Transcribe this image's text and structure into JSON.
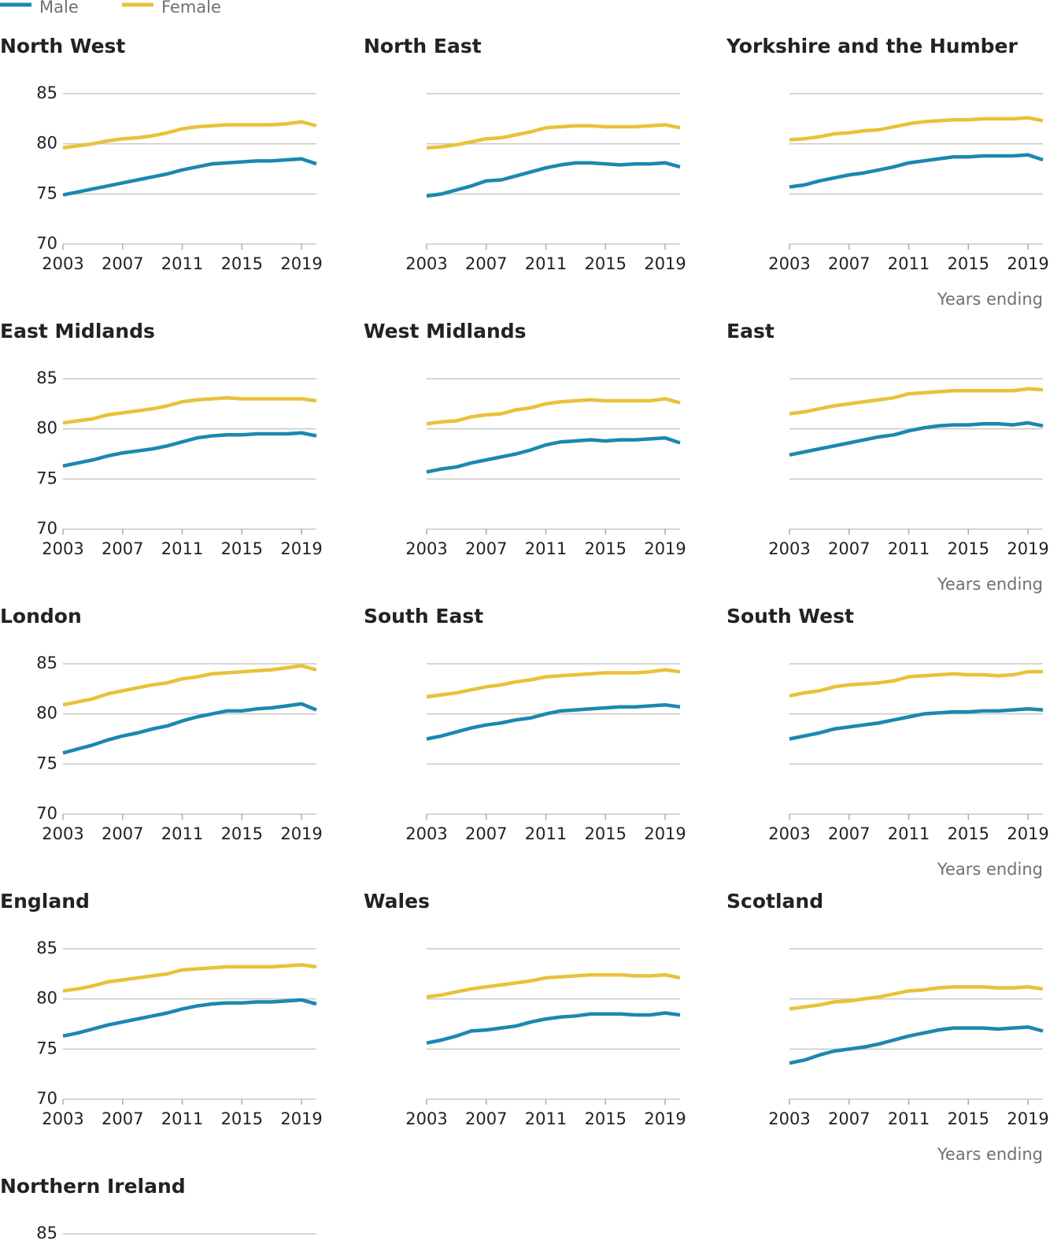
{
  "legend": {
    "items": [
      {
        "name": "Male",
        "color": "#1b88b0"
      },
      {
        "name": "Female",
        "color": "#e8c23a"
      }
    ]
  },
  "chart_data": [
    {
      "type": "line",
      "title": "North West",
      "x": [
        2003,
        2004,
        2005,
        2006,
        2007,
        2008,
        2009,
        2010,
        2011,
        2012,
        2013,
        2014,
        2015,
        2016,
        2017,
        2018,
        2019,
        2020
      ],
      "xlim": [
        2003,
        2020
      ],
      "xticks": [
        2003,
        2007,
        2011,
        2015,
        2019
      ],
      "ylim": [
        70,
        85
      ],
      "yticks": [
        70,
        75,
        80,
        85
      ],
      "show_ytick_labels": true,
      "grid": true,
      "series": [
        {
          "color": "#1b88b0",
          "values": [
            74.9,
            75.2,
            75.5,
            75.8,
            76.1,
            76.4,
            76.7,
            77.0,
            77.4,
            77.7,
            78.0,
            78.1,
            78.2,
            78.3,
            78.3,
            78.4,
            78.5,
            78.0
          ]
        },
        {
          "color": "#e8c23a",
          "values": [
            79.6,
            79.8,
            80.0,
            80.3,
            80.5,
            80.6,
            80.8,
            81.1,
            81.5,
            81.7,
            81.8,
            81.9,
            81.9,
            81.9,
            81.9,
            82.0,
            82.2,
            81.8
          ]
        }
      ]
    },
    {
      "type": "line",
      "title": "North East",
      "x": [
        2003,
        2004,
        2005,
        2006,
        2007,
        2008,
        2009,
        2010,
        2011,
        2012,
        2013,
        2014,
        2015,
        2016,
        2017,
        2018,
        2019,
        2020
      ],
      "xlim": [
        2003,
        2020
      ],
      "xticks": [
        2003,
        2007,
        2011,
        2015,
        2019
      ],
      "ylim": [
        70,
        85
      ],
      "yticks": [
        70,
        75,
        80,
        85
      ],
      "show_ytick_labels": false,
      "grid": true,
      "series": [
        {
          "color": "#1b88b0",
          "values": [
            74.8,
            75.0,
            75.4,
            75.8,
            76.3,
            76.4,
            76.8,
            77.2,
            77.6,
            77.9,
            78.1,
            78.1,
            78.0,
            77.9,
            78.0,
            78.0,
            78.1,
            77.7
          ]
        },
        {
          "color": "#e8c23a",
          "values": [
            79.6,
            79.7,
            79.9,
            80.2,
            80.5,
            80.6,
            80.9,
            81.2,
            81.6,
            81.7,
            81.8,
            81.8,
            81.7,
            81.7,
            81.7,
            81.8,
            81.9,
            81.6
          ]
        }
      ]
    },
    {
      "type": "line",
      "title": "Yorkshire and the Humber",
      "xlabel": "Years ending",
      "x": [
        2003,
        2004,
        2005,
        2006,
        2007,
        2008,
        2009,
        2010,
        2011,
        2012,
        2013,
        2014,
        2015,
        2016,
        2017,
        2018,
        2019,
        2020
      ],
      "xlim": [
        2003,
        2020
      ],
      "xticks": [
        2003,
        2007,
        2011,
        2015,
        2019
      ],
      "ylim": [
        70,
        85
      ],
      "yticks": [
        70,
        75,
        80,
        85
      ],
      "show_ytick_labels": false,
      "grid": true,
      "series": [
        {
          "color": "#1b88b0",
          "values": [
            75.7,
            75.9,
            76.3,
            76.6,
            76.9,
            77.1,
            77.4,
            77.7,
            78.1,
            78.3,
            78.5,
            78.7,
            78.7,
            78.8,
            78.8,
            78.8,
            78.9,
            78.4
          ]
        },
        {
          "color": "#e8c23a",
          "values": [
            80.4,
            80.5,
            80.7,
            81.0,
            81.1,
            81.3,
            81.4,
            81.7,
            82.0,
            82.2,
            82.3,
            82.4,
            82.4,
            82.5,
            82.5,
            82.5,
            82.6,
            82.3
          ]
        }
      ]
    },
    {
      "type": "line",
      "title": "East Midlands",
      "x": [
        2003,
        2004,
        2005,
        2006,
        2007,
        2008,
        2009,
        2010,
        2011,
        2012,
        2013,
        2014,
        2015,
        2016,
        2017,
        2018,
        2019,
        2020
      ],
      "xlim": [
        2003,
        2020
      ],
      "xticks": [
        2003,
        2007,
        2011,
        2015,
        2019
      ],
      "ylim": [
        70,
        85
      ],
      "yticks": [
        70,
        75,
        80,
        85
      ],
      "show_ytick_labels": true,
      "grid": true,
      "series": [
        {
          "color": "#1b88b0",
          "values": [
            76.3,
            76.6,
            76.9,
            77.3,
            77.6,
            77.8,
            78.0,
            78.3,
            78.7,
            79.1,
            79.3,
            79.4,
            79.4,
            79.5,
            79.5,
            79.5,
            79.6,
            79.3
          ]
        },
        {
          "color": "#e8c23a",
          "values": [
            80.6,
            80.8,
            81.0,
            81.4,
            81.6,
            81.8,
            82.0,
            82.3,
            82.7,
            82.9,
            83.0,
            83.1,
            83.0,
            83.0,
            83.0,
            83.0,
            83.0,
            82.8
          ]
        }
      ]
    },
    {
      "type": "line",
      "title": "West Midlands",
      "x": [
        2003,
        2004,
        2005,
        2006,
        2007,
        2008,
        2009,
        2010,
        2011,
        2012,
        2013,
        2014,
        2015,
        2016,
        2017,
        2018,
        2019,
        2020
      ],
      "xlim": [
        2003,
        2020
      ],
      "xticks": [
        2003,
        2007,
        2011,
        2015,
        2019
      ],
      "ylim": [
        70,
        85
      ],
      "yticks": [
        70,
        75,
        80,
        85
      ],
      "show_ytick_labels": false,
      "grid": true,
      "series": [
        {
          "color": "#1b88b0",
          "values": [
            75.7,
            76.0,
            76.2,
            76.6,
            76.9,
            77.2,
            77.5,
            77.9,
            78.4,
            78.7,
            78.8,
            78.9,
            78.8,
            78.9,
            78.9,
            79.0,
            79.1,
            78.6
          ]
        },
        {
          "color": "#e8c23a",
          "values": [
            80.5,
            80.7,
            80.8,
            81.2,
            81.4,
            81.5,
            81.9,
            82.1,
            82.5,
            82.7,
            82.8,
            82.9,
            82.8,
            82.8,
            82.8,
            82.8,
            83.0,
            82.6
          ]
        }
      ]
    },
    {
      "type": "line",
      "title": "East",
      "xlabel": "Years ending",
      "x": [
        2003,
        2004,
        2005,
        2006,
        2007,
        2008,
        2009,
        2010,
        2011,
        2012,
        2013,
        2014,
        2015,
        2016,
        2017,
        2018,
        2019,
        2020
      ],
      "xlim": [
        2003,
        2020
      ],
      "xticks": [
        2003,
        2007,
        2011,
        2015,
        2019
      ],
      "ylim": [
        70,
        85
      ],
      "yticks": [
        70,
        75,
        80,
        85
      ],
      "show_ytick_labels": false,
      "grid": true,
      "series": [
        {
          "color": "#1b88b0",
          "values": [
            77.4,
            77.7,
            78.0,
            78.3,
            78.6,
            78.9,
            79.2,
            79.4,
            79.8,
            80.1,
            80.3,
            80.4,
            80.4,
            80.5,
            80.5,
            80.4,
            80.6,
            80.3
          ]
        },
        {
          "color": "#e8c23a",
          "values": [
            81.5,
            81.7,
            82.0,
            82.3,
            82.5,
            82.7,
            82.9,
            83.1,
            83.5,
            83.6,
            83.7,
            83.8,
            83.8,
            83.8,
            83.8,
            83.8,
            84.0,
            83.9
          ]
        }
      ]
    },
    {
      "type": "line",
      "title": "London",
      "x": [
        2003,
        2004,
        2005,
        2006,
        2007,
        2008,
        2009,
        2010,
        2011,
        2012,
        2013,
        2014,
        2015,
        2016,
        2017,
        2018,
        2019,
        2020
      ],
      "xlim": [
        2003,
        2020
      ],
      "xticks": [
        2003,
        2007,
        2011,
        2015,
        2019
      ],
      "ylim": [
        70,
        85
      ],
      "yticks": [
        70,
        75,
        80,
        85
      ],
      "show_ytick_labels": true,
      "grid": true,
      "series": [
        {
          "color": "#1b88b0",
          "values": [
            76.1,
            76.5,
            76.9,
            77.4,
            77.8,
            78.1,
            78.5,
            78.8,
            79.3,
            79.7,
            80.0,
            80.3,
            80.3,
            80.5,
            80.6,
            80.8,
            81.0,
            80.4
          ]
        },
        {
          "color": "#e8c23a",
          "values": [
            80.9,
            81.2,
            81.5,
            82.0,
            82.3,
            82.6,
            82.9,
            83.1,
            83.5,
            83.7,
            84.0,
            84.1,
            84.2,
            84.3,
            84.4,
            84.6,
            84.8,
            84.4
          ]
        }
      ]
    },
    {
      "type": "line",
      "title": "South East",
      "x": [
        2003,
        2004,
        2005,
        2006,
        2007,
        2008,
        2009,
        2010,
        2011,
        2012,
        2013,
        2014,
        2015,
        2016,
        2017,
        2018,
        2019,
        2020
      ],
      "xlim": [
        2003,
        2020
      ],
      "xticks": [
        2003,
        2007,
        2011,
        2015,
        2019
      ],
      "ylim": [
        70,
        85
      ],
      "yticks": [
        70,
        75,
        80,
        85
      ],
      "show_ytick_labels": false,
      "grid": true,
      "series": [
        {
          "color": "#1b88b0",
          "values": [
            77.5,
            77.8,
            78.2,
            78.6,
            78.9,
            79.1,
            79.4,
            79.6,
            80.0,
            80.3,
            80.4,
            80.5,
            80.6,
            80.7,
            80.7,
            80.8,
            80.9,
            80.7
          ]
        },
        {
          "color": "#e8c23a",
          "values": [
            81.7,
            81.9,
            82.1,
            82.4,
            82.7,
            82.9,
            83.2,
            83.4,
            83.7,
            83.8,
            83.9,
            84.0,
            84.1,
            84.1,
            84.1,
            84.2,
            84.4,
            84.2
          ]
        }
      ]
    },
    {
      "type": "line",
      "title": "South West",
      "xlabel": "Years ending",
      "x": [
        2003,
        2004,
        2005,
        2006,
        2007,
        2008,
        2009,
        2010,
        2011,
        2012,
        2013,
        2014,
        2015,
        2016,
        2017,
        2018,
        2019,
        2020
      ],
      "xlim": [
        2003,
        2020
      ],
      "xticks": [
        2003,
        2007,
        2011,
        2015,
        2019
      ],
      "ylim": [
        70,
        85
      ],
      "yticks": [
        70,
        75,
        80,
        85
      ],
      "show_ytick_labels": false,
      "grid": true,
      "series": [
        {
          "color": "#1b88b0",
          "values": [
            77.5,
            77.8,
            78.1,
            78.5,
            78.7,
            78.9,
            79.1,
            79.4,
            79.7,
            80.0,
            80.1,
            80.2,
            80.2,
            80.3,
            80.3,
            80.4,
            80.5,
            80.4
          ]
        },
        {
          "color": "#e8c23a",
          "values": [
            81.8,
            82.1,
            82.3,
            82.7,
            82.9,
            83.0,
            83.1,
            83.3,
            83.7,
            83.8,
            83.9,
            84.0,
            83.9,
            83.9,
            83.8,
            83.9,
            84.2,
            84.2
          ]
        }
      ]
    },
    {
      "type": "line",
      "title": "England",
      "x": [
        2003,
        2004,
        2005,
        2006,
        2007,
        2008,
        2009,
        2010,
        2011,
        2012,
        2013,
        2014,
        2015,
        2016,
        2017,
        2018,
        2019,
        2020
      ],
      "xlim": [
        2003,
        2020
      ],
      "xticks": [
        2003,
        2007,
        2011,
        2015,
        2019
      ],
      "ylim": [
        70,
        85
      ],
      "yticks": [
        70,
        75,
        80,
        85
      ],
      "show_ytick_labels": true,
      "grid": true,
      "series": [
        {
          "color": "#1b88b0",
          "values": [
            76.3,
            76.6,
            77.0,
            77.4,
            77.7,
            78.0,
            78.3,
            78.6,
            79.0,
            79.3,
            79.5,
            79.6,
            79.6,
            79.7,
            79.7,
            79.8,
            79.9,
            79.5
          ]
        },
        {
          "color": "#e8c23a",
          "values": [
            80.8,
            81.0,
            81.3,
            81.7,
            81.9,
            82.1,
            82.3,
            82.5,
            82.9,
            83.0,
            83.1,
            83.2,
            83.2,
            83.2,
            83.2,
            83.3,
            83.4,
            83.2
          ]
        }
      ]
    },
    {
      "type": "line",
      "title": "Wales",
      "x": [
        2003,
        2004,
        2005,
        2006,
        2007,
        2008,
        2009,
        2010,
        2011,
        2012,
        2013,
        2014,
        2015,
        2016,
        2017,
        2018,
        2019,
        2020
      ],
      "xlim": [
        2003,
        2020
      ],
      "xticks": [
        2003,
        2007,
        2011,
        2015,
        2019
      ],
      "ylim": [
        70,
        85
      ],
      "yticks": [
        70,
        75,
        80,
        85
      ],
      "show_ytick_labels": false,
      "grid": true,
      "series": [
        {
          "color": "#1b88b0",
          "values": [
            75.6,
            75.9,
            76.3,
            76.8,
            76.9,
            77.1,
            77.3,
            77.7,
            78.0,
            78.2,
            78.3,
            78.5,
            78.5,
            78.5,
            78.4,
            78.4,
            78.6,
            78.4
          ]
        },
        {
          "color": "#e8c23a",
          "values": [
            80.2,
            80.4,
            80.7,
            81.0,
            81.2,
            81.4,
            81.6,
            81.8,
            82.1,
            82.2,
            82.3,
            82.4,
            82.4,
            82.4,
            82.3,
            82.3,
            82.4,
            82.1
          ]
        }
      ]
    },
    {
      "type": "line",
      "title": "Scotland",
      "xlabel": "Years ending",
      "x": [
        2003,
        2004,
        2005,
        2006,
        2007,
        2008,
        2009,
        2010,
        2011,
        2012,
        2013,
        2014,
        2015,
        2016,
        2017,
        2018,
        2019,
        2020
      ],
      "xlim": [
        2003,
        2020
      ],
      "xticks": [
        2003,
        2007,
        2011,
        2015,
        2019
      ],
      "ylim": [
        70,
        85
      ],
      "yticks": [
        70,
        75,
        80,
        85
      ],
      "show_ytick_labels": false,
      "grid": true,
      "series": [
        {
          "color": "#1b88b0",
          "values": [
            73.6,
            73.9,
            74.4,
            74.8,
            75.0,
            75.2,
            75.5,
            75.9,
            76.3,
            76.6,
            76.9,
            77.1,
            77.1,
            77.1,
            77.0,
            77.1,
            77.2,
            76.8
          ]
        },
        {
          "color": "#e8c23a",
          "values": [
            79.0,
            79.2,
            79.4,
            79.7,
            79.8,
            80.0,
            80.2,
            80.5,
            80.8,
            80.9,
            81.1,
            81.2,
            81.2,
            81.2,
            81.1,
            81.1,
            81.2,
            81.0
          ]
        }
      ]
    },
    {
      "type": "line",
      "title": "Northern Ireland",
      "ylim": [
        70,
        85
      ],
      "yticks": [
        85
      ],
      "show_ytick_labels": true,
      "grid": true
    }
  ]
}
